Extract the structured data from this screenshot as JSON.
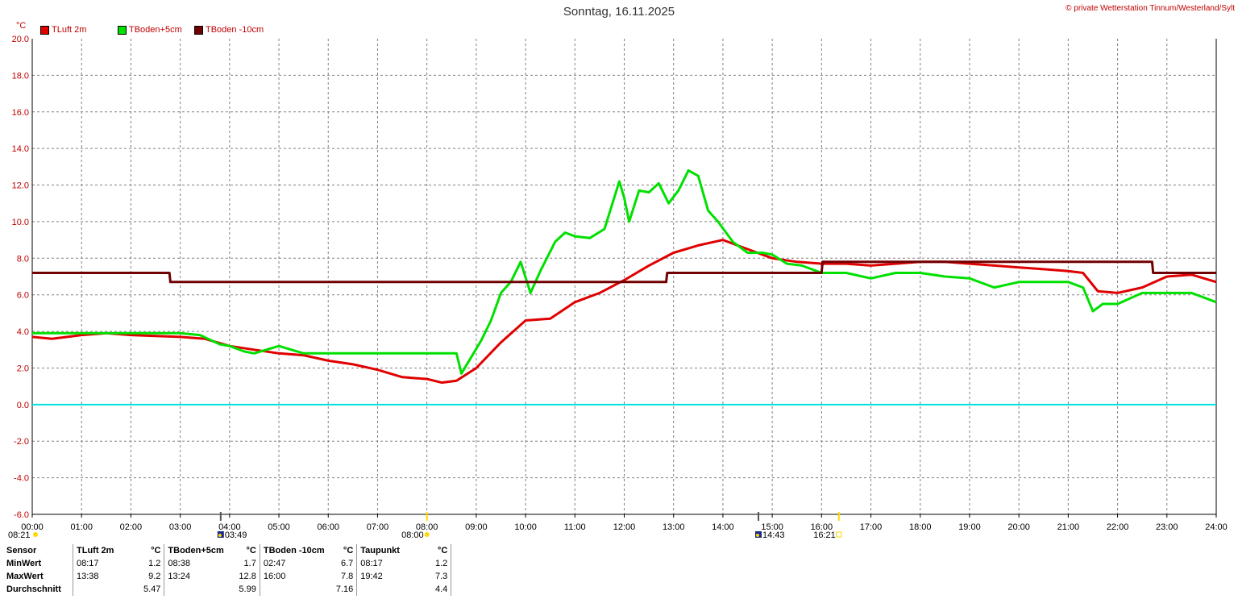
{
  "header": {
    "title": "Sonntag, 16.11.2025",
    "copyright": "© private Wetterstation Tinnum/Westerland/Sylt",
    "unit": "°C"
  },
  "colors": {
    "tluft": "#e00000",
    "tboden5": "#00e000",
    "tboden10": "#700000",
    "zero_line": "#00e0e0",
    "grid": "#808080",
    "axis_text": "#c00000"
  },
  "chart_data": {
    "type": "line",
    "title": "Sonntag, 16.11.2025",
    "ylabel": "°C",
    "ylim": [
      -6,
      20
    ],
    "xlim": [
      0,
      24
    ],
    "grid": true,
    "legend_position": "top-left",
    "y_ticks": [
      "20.0",
      "18.0",
      "16.0",
      "14.0",
      "12.0",
      "10.0",
      "8.0",
      "6.0",
      "4.0",
      "2.0",
      "0.0",
      "-2.0",
      "-4.0",
      "-6.0"
    ],
    "x_ticks": [
      "00:00",
      "01:00",
      "02:00",
      "03:00",
      "04:00",
      "05:00",
      "06:00",
      "07:00",
      "08:00",
      "09:00",
      "10:00",
      "11:00",
      "12:00",
      "13:00",
      "14:00",
      "15:00",
      "16:00",
      "17:00",
      "18:00",
      "19:00",
      "20:00",
      "21:00",
      "22:00",
      "23:00",
      "24:00"
    ],
    "series": [
      {
        "name": "TLuft 2m",
        "color": "#e00000",
        "x": [
          0,
          0.4,
          1,
          1.5,
          2,
          3,
          3.5,
          4,
          4.5,
          5,
          5.5,
          6,
          6.5,
          7,
          7.5,
          8,
          8.3,
          8.6,
          9,
          9.5,
          10,
          10.5,
          11,
          11.5,
          12,
          12.5,
          13,
          13.5,
          14,
          14.5,
          15,
          15.5,
          16,
          16.5,
          17,
          17.5,
          18,
          18.5,
          19,
          19.5,
          20,
          20.5,
          21,
          21.3,
          21.6,
          22,
          22.5,
          23,
          23.5,
          24
        ],
        "values": [
          3.7,
          3.6,
          3.8,
          3.9,
          3.8,
          3.7,
          3.6,
          3.2,
          3.0,
          2.8,
          2.7,
          2.4,
          2.2,
          1.9,
          1.5,
          1.4,
          1.2,
          1.3,
          2.0,
          3.4,
          4.6,
          4.7,
          5.6,
          6.1,
          6.8,
          7.6,
          8.3,
          8.7,
          9.0,
          8.5,
          8.0,
          7.8,
          7.7,
          7.7,
          7.6,
          7.7,
          7.8,
          7.8,
          7.7,
          7.6,
          7.5,
          7.4,
          7.3,
          7.2,
          6.2,
          6.1,
          6.4,
          7.0,
          7.1,
          6.7
        ]
      },
      {
        "name": "TBoden+5cm",
        "color": "#00e000",
        "x": [
          0,
          3,
          3.4,
          3.8,
          4,
          4.3,
          4.5,
          5,
          5.5,
          6,
          7,
          8,
          8.6,
          8.7,
          8.9,
          9.1,
          9.3,
          9.5,
          9.7,
          9.9,
          10.1,
          10.3,
          10.6,
          10.8,
          11,
          11.3,
          11.6,
          11.9,
          12,
          12.1,
          12.3,
          12.5,
          12.7,
          12.9,
          13.1,
          13.3,
          13.5,
          13.7,
          13.9,
          14.2,
          14.5,
          14.8,
          15,
          15.3,
          15.6,
          16,
          16.5,
          17,
          17.5,
          18,
          18.5,
          19,
          19.5,
          20,
          20.5,
          21,
          21.3,
          21.5,
          21.7,
          22,
          22.5,
          23,
          23.5,
          24
        ],
        "values": [
          3.9,
          3.9,
          3.8,
          3.3,
          3.2,
          2.9,
          2.8,
          3.2,
          2.8,
          2.8,
          2.8,
          2.8,
          2.8,
          1.7,
          2.6,
          3.5,
          4.6,
          6.1,
          6.7,
          7.8,
          6.1,
          7.3,
          8.9,
          9.4,
          9.2,
          9.1,
          9.6,
          12.2,
          11.3,
          10.0,
          11.7,
          11.6,
          12.1,
          11.0,
          11.7,
          12.8,
          12.5,
          10.6,
          10.0,
          8.9,
          8.3,
          8.3,
          8.2,
          7.7,
          7.6,
          7.2,
          7.2,
          6.9,
          7.2,
          7.2,
          7.0,
          6.9,
          6.4,
          6.7,
          6.7,
          6.7,
          6.4,
          5.1,
          5.5,
          5.5,
          6.1,
          6.1,
          6.1,
          5.6
        ]
      },
      {
        "name": "TBoden -10cm",
        "color": "#700000",
        "x": [
          0,
          2.78,
          2.8,
          12.85,
          12.87,
          16.0,
          16.02,
          22.7,
          22.72,
          24
        ],
        "values": [
          7.2,
          7.2,
          6.7,
          6.7,
          7.2,
          7.2,
          7.8,
          7.8,
          7.2,
          7.2
        ]
      }
    ],
    "markers": [
      {
        "time_value": 3.82,
        "label": "03:49",
        "kind": "sunrise-moon"
      },
      {
        "time_value": 8.0,
        "label": "08:00",
        "kind": "sun"
      },
      {
        "time_value": 14.72,
        "label": "14:43",
        "kind": "moon"
      },
      {
        "time_value": 16.35,
        "label": "16:21",
        "kind": "sunset"
      }
    ],
    "first_marker_label": "08:21"
  },
  "legend": [
    {
      "label": "TLuft 2m",
      "color": "#e00000"
    },
    {
      "label": "TBoden+5cm",
      "color": "#00e000"
    },
    {
      "label": "TBoden -10cm",
      "color": "#700000"
    }
  ],
  "stats": {
    "headers": [
      "Sensor",
      "TLuft 2m",
      "°C",
      "TBoden+5cm",
      "°C",
      "TBoden -10cm",
      "°C",
      "Taupunkt",
      "°C"
    ],
    "rows": [
      {
        "label": "MinWert",
        "cells": [
          "08:17",
          "1.2",
          "08:38",
          "1.7",
          "02:47",
          "6.7",
          "08:17",
          "1.2"
        ]
      },
      {
        "label": "MaxWert",
        "cells": [
          "13:38",
          "9.2",
          "13:24",
          "12.8",
          "16:00",
          "7.8",
          "19:42",
          "7.3"
        ]
      },
      {
        "label": "Durchschnitt",
        "cells": [
          "",
          "5.47",
          "",
          "5.99",
          "",
          "7.16",
          "",
          "4.4"
        ]
      }
    ]
  }
}
